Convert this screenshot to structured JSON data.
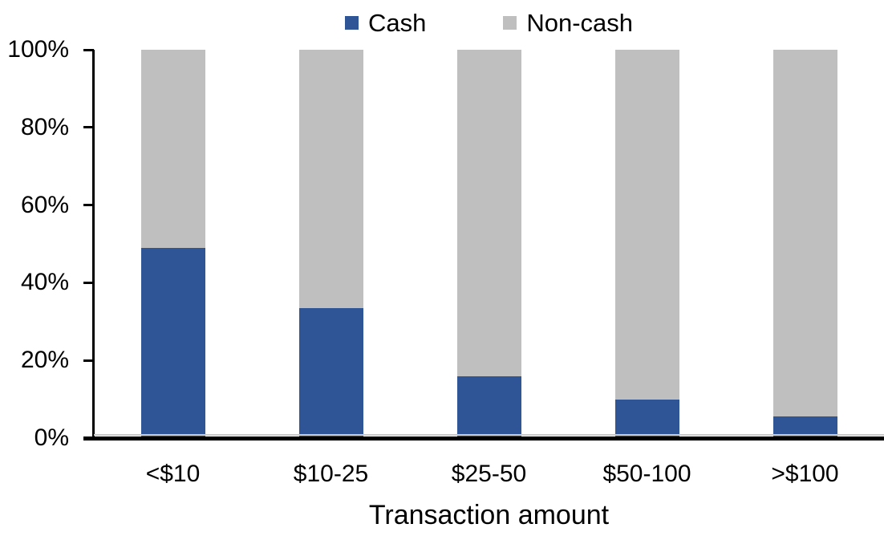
{
  "chart_data": {
    "type": "bar",
    "stacked": true,
    "stacked_to_100_percent": true,
    "title": "",
    "xlabel": "Transaction amount",
    "ylabel": "",
    "categories": [
      "<$10",
      "$10-25",
      "$25-50",
      "$50-100",
      ">$100"
    ],
    "series": [
      {
        "name": "Cash",
        "color": "#2F5597",
        "values": [
          49,
          33.5,
          16,
          10,
          5.5
        ]
      },
      {
        "name": "Non-cash",
        "color": "#BFBFBF",
        "values": [
          51,
          66.5,
          84,
          90,
          94.5
        ]
      }
    ],
    "ylim": [
      0,
      100
    ],
    "y_tick_labels": [
      "0%",
      "20%",
      "40%",
      "60%",
      "80%",
      "100%"
    ],
    "y_tick_values": [
      0,
      20,
      40,
      60,
      80,
      100
    ],
    "grid": false,
    "legend_position": "top-center",
    "axis_color": "#000000",
    "zero_gridline_color": "#C9C9C9",
    "text_color": "#000000",
    "background_color": "#FFFFFF"
  }
}
